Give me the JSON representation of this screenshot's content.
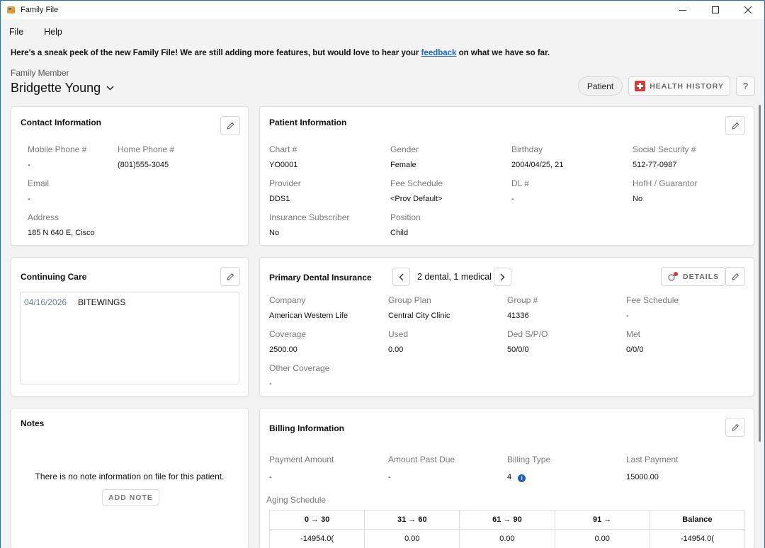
{
  "window": {
    "title": "Family File"
  },
  "menu": {
    "items": [
      "File",
      "Help"
    ]
  },
  "banner": {
    "text_before": "Here's a sneak peek of the new Family File! We are still adding more features,  but would love to hear your ",
    "link": "feedback",
    "text_after": " on what we have so far."
  },
  "family_member": {
    "label": "Family Member",
    "name": "Bridgette Young"
  },
  "top_actions": {
    "patient": "Patient",
    "health_history": "HEALTH HISTORY",
    "help": "?"
  },
  "contact": {
    "title": "Contact Information",
    "fields": [
      {
        "label": "Mobile Phone #",
        "value": "-"
      },
      {
        "label": "Home Phone #",
        "value": "(801)555-3045"
      },
      {
        "label": "Email",
        "value": "-"
      },
      {
        "label": "Address",
        "value": "185 N 640 E, Cisco"
      }
    ]
  },
  "patient": {
    "title": "Patient Information",
    "fields": [
      {
        "label": "Chart #",
        "value": "YO0001"
      },
      {
        "label": "Gender",
        "value": "Female"
      },
      {
        "label": "Birthday",
        "value": "2004/04/25, 21"
      },
      {
        "label": "Social Security #",
        "value": "512-77-0987"
      },
      {
        "label": "Provider",
        "value": "DDS1"
      },
      {
        "label": "Fee Schedule",
        "value": "<Prov Default>"
      },
      {
        "label": "DL #",
        "value": "-"
      },
      {
        "label": "HofH / Guarantor",
        "value": "No"
      },
      {
        "label": "Insurance Subscriber",
        "value": "No"
      },
      {
        "label": "Position",
        "value": "Child"
      }
    ]
  },
  "continuing_care": {
    "title": "Continuing Care",
    "items": [
      {
        "date": "04/16/2026",
        "procedure": "BITEWINGS"
      }
    ]
  },
  "insurance": {
    "title": "Primary Dental Insurance",
    "count": "2 dental, 1 medical",
    "details": "DETAILS",
    "fields": [
      {
        "label": "Company",
        "value": "American Western Life"
      },
      {
        "label": "Group Plan",
        "value": "Central City Clinic"
      },
      {
        "label": "Group #",
        "value": "41336"
      },
      {
        "label": "Fee Schedule",
        "value": "-"
      },
      {
        "label": "Coverage",
        "value": "2500.00"
      },
      {
        "label": "Used",
        "value": "0.00"
      },
      {
        "label": "Ded S/P/O",
        "value": "50/0/0"
      },
      {
        "label": "Met",
        "value": "0/0/0"
      },
      {
        "label": "Other Coverage",
        "value": "-"
      }
    ]
  },
  "notes": {
    "title": "Notes",
    "empty": "There is no note information on file for this patient.",
    "add": "ADD NOTE"
  },
  "billing": {
    "title": "Billing Information",
    "fields": [
      {
        "label": "Payment Amount",
        "value": "-"
      },
      {
        "label": "Amount Past Due",
        "value": "-"
      },
      {
        "label": "Billing Type",
        "value": "4"
      },
      {
        "label": "Last Payment",
        "value": "15000.00"
      }
    ],
    "aging_label": "Aging Schedule",
    "aging_headers": [
      "0 → 30",
      "31 → 60",
      "61 → 90",
      "91 →",
      "Balance"
    ],
    "aging_values": [
      "-14954.0(",
      "0.00",
      "0.00",
      "0.00",
      "-14954.0("
    ]
  },
  "colors": {
    "accent": "#1a66c9",
    "info": "#1b5fb8",
    "health": "#d63a3a"
  }
}
